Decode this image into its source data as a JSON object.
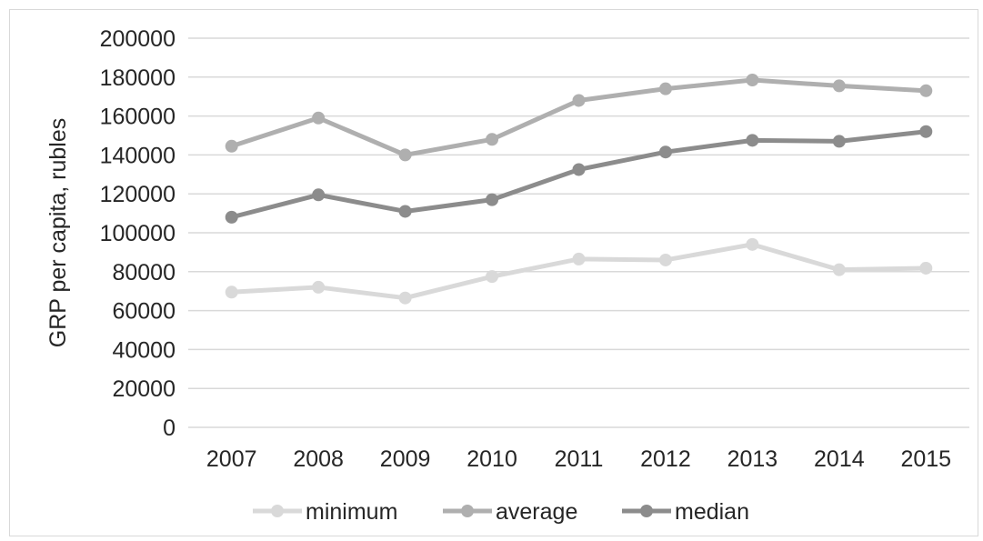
{
  "chart_data": {
    "type": "line",
    "title": "",
    "xlabel": "",
    "ylabel": "GRP per capita, rubles",
    "ylim": [
      0,
      200000
    ],
    "yticks": [
      0,
      20000,
      40000,
      60000,
      80000,
      100000,
      120000,
      140000,
      160000,
      180000,
      200000
    ],
    "categories": [
      "2007",
      "2008",
      "2009",
      "2010",
      "2011",
      "2012",
      "2013",
      "2014",
      "2015"
    ],
    "grid": "horizontal",
    "legend_position": "bottom",
    "series": [
      {
        "name": "minimum",
        "color": "#d9d9d9",
        "values": [
          69500,
          72000,
          66500,
          77500,
          86500,
          86000,
          94000,
          81000,
          81800
        ]
      },
      {
        "name": "average",
        "color": "#afafaf",
        "values": [
          144500,
          159000,
          140000,
          148000,
          168000,
          174000,
          178500,
          175500,
          173000
        ]
      },
      {
        "name": "median",
        "color": "#8c8c8c",
        "values": [
          108000,
          119500,
          111000,
          117000,
          132500,
          141500,
          147500,
          147000,
          152000
        ]
      }
    ]
  }
}
